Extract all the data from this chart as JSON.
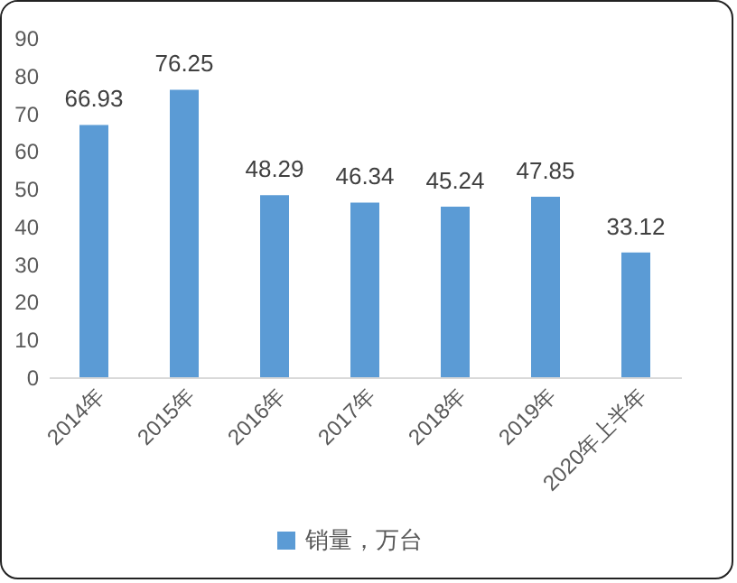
{
  "chart_data": {
    "type": "bar",
    "categories": [
      "2014年",
      "2015年",
      "2016年",
      "2017年",
      "2018年",
      "2019年",
      "2020年上半年"
    ],
    "series": [
      {
        "name": "销量，万台",
        "color": "#5b9bd5",
        "values": [
          66.93,
          76.25,
          48.29,
          46.34,
          45.24,
          47.85,
          33.12
        ]
      }
    ],
    "ylim": [
      0,
      90
    ],
    "yticks": [
      0,
      10,
      20,
      30,
      40,
      50,
      60,
      70,
      80,
      90
    ],
    "data_labels": true,
    "legend": "bottom",
    "grid": false
  }
}
